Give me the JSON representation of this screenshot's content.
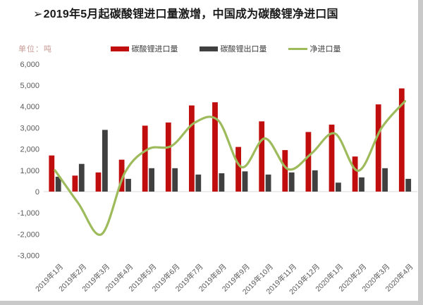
{
  "page": {
    "title_bullet": "➢",
    "title": "2019年5月起碳酸锂进口量激增，中国成为碳酸锂净进口国",
    "unit_label": "单位：吨"
  },
  "colors": {
    "import_bar": "#c00d0d",
    "export_bar": "#404040",
    "net_line": "#9ebb5c",
    "axis_text": "#595959",
    "zero_line": "#d9d9d9",
    "title_text": "#1a1a1a",
    "unit_text": "#c79b96",
    "legend_text": "#404040"
  },
  "legend": [
    {
      "label": "碳酸锂进口量",
      "type": "bar",
      "color": "#c00d0d"
    },
    {
      "label": "碳酸锂出口量",
      "type": "bar",
      "color": "#404040"
    },
    {
      "label": "净进口量",
      "type": "line",
      "color": "#9ebb5c"
    }
  ],
  "chart_data": {
    "type": "bar",
    "title": "2019年5月起碳酸锂进口量激增，中国成为碳酸锂净进口国",
    "ylabel": "单位：吨",
    "categories": [
      "2019年1月",
      "2019年2月",
      "2019年3月",
      "2019年4月",
      "2019年5月",
      "2019年6月",
      "2019年7月",
      "2019年8月",
      "2019年9月",
      "2019年10月",
      "2019年11月",
      "2019年12月",
      "2020年1月",
      "2020年2月",
      "2020年3月",
      "2020年4月"
    ],
    "series": [
      {
        "name": "碳酸锂进口量",
        "type": "bar",
        "color": "#c00d0d",
        "values": [
          1700,
          750,
          900,
          1500,
          3100,
          3250,
          4050,
          4200,
          2100,
          3300,
          1950,
          2800,
          3150,
          1650,
          4100,
          4850
        ]
      },
      {
        "name": "碳酸锂出口量",
        "type": "bar",
        "color": "#404040",
        "values": [
          700,
          1300,
          2900,
          600,
          1100,
          1100,
          800,
          860,
          950,
          800,
          900,
          1000,
          420,
          670,
          1100,
          600
        ]
      },
      {
        "name": "净进口量",
        "type": "line",
        "color": "#9ebb5c",
        "smooth": true,
        "values": [
          1000,
          -550,
          -2000,
          900,
          2000,
          2150,
          3250,
          3340,
          1150,
          2500,
          1050,
          1800,
          2730,
          980,
          3000,
          4250
        ]
      }
    ],
    "ylim": [
      -3000,
      6000
    ],
    "y_tick_step": 1000,
    "y_tick_labels": [
      "6,000",
      "5,000",
      "4,000",
      "3,000",
      "2,000",
      "1,000",
      "0",
      "-1,000",
      "-2,000",
      "-3,000"
    ],
    "grid": false,
    "legend_position": "top"
  }
}
